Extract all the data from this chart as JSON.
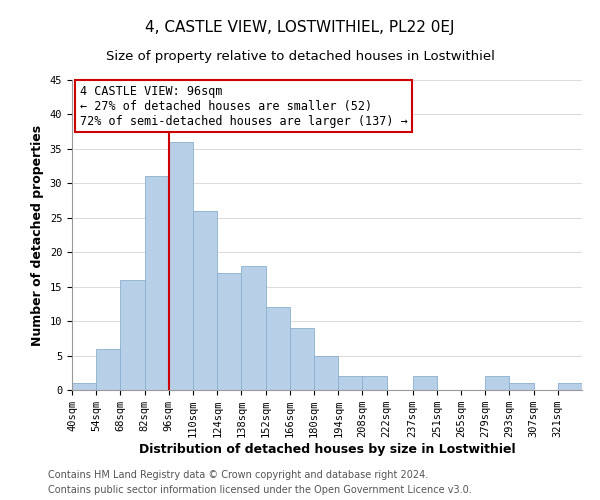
{
  "title": "4, CASTLE VIEW, LOSTWITHIEL, PL22 0EJ",
  "subtitle": "Size of property relative to detached houses in Lostwithiel",
  "xlabel": "Distribution of detached houses by size in Lostwithiel",
  "ylabel": "Number of detached properties",
  "bin_edges": [
    40,
    54,
    68,
    82,
    96,
    110,
    124,
    138,
    152,
    166,
    180,
    194,
    208,
    222,
    237,
    251,
    265,
    279,
    293,
    307,
    321,
    335
  ],
  "bar_heights": [
    1,
    6,
    16,
    31,
    36,
    26,
    17,
    18,
    12,
    9,
    5,
    2,
    2,
    0,
    2,
    0,
    0,
    2,
    1,
    0,
    1
  ],
  "bar_color": "#b8cfe8",
  "bar_edgecolor": "#8ab0d0",
  "vline_x": 96,
  "vline_color": "#cc0000",
  "ylim": [
    0,
    45
  ],
  "yticks": [
    0,
    5,
    10,
    15,
    20,
    25,
    30,
    35,
    40,
    45
  ],
  "annotation_title": "4 CASTLE VIEW: 96sqm",
  "annotation_line1": "← 27% of detached houses are smaller (52)",
  "annotation_line2": "72% of semi-detached houses are larger (137) →",
  "footer_line1": "Contains HM Land Registry data © Crown copyright and database right 2024.",
  "footer_line2": "Contains public sector information licensed under the Open Government Licence v3.0.",
  "background_color": "#ffffff",
  "plot_background": "#ffffff",
  "title_fontsize": 11,
  "subtitle_fontsize": 9.5,
  "label_fontsize": 9,
  "tick_fontsize": 7.5,
  "footer_fontsize": 7,
  "annotation_fontsize": 8.5
}
